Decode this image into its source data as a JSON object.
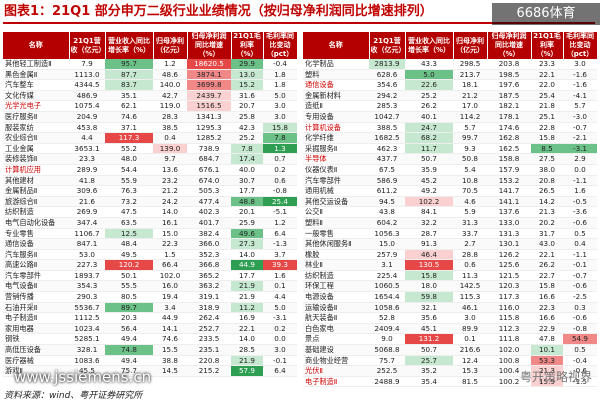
{
  "title": "图表1：21Q1 部分申万二级行业业绩情况（按归母净利润同比增速排列）",
  "badge": "6686体育",
  "source": "资料来源：wind、粤开证券研究所",
  "watermark_left": "www.jssiemens.cn",
  "watermark_right": "粤开策略视界",
  "headers": [
    "名称",
    "21Q1营收（亿元）",
    "营业收入同比增长率（%）",
    "归母净利（亿元）",
    "归母净利润同比增速（%）",
    "21Q1毛利率（%）",
    "毛利率同比变动（pct）"
  ],
  "left_rows": [
    [
      "其他轻工制造Ⅱ",
      "7.9",
      "95.7",
      "1.2",
      "18620.5",
      "29.9",
      "-0.4"
    ],
    [
      "黑色金属Ⅱ",
      "1113.0",
      "87.7",
      "48.6",
      "3874.1",
      "13.0",
      "1.8"
    ],
    [
      "汽车整车",
      "4344.5",
      "83.7",
      "140.0",
      "3699.8",
      "15.2",
      "1.8"
    ],
    [
      "文化传媒",
      "486.9",
      "35.1",
      "42.7",
      "2439.7",
      "31.6",
      "5.0"
    ],
    [
      "光学光电子",
      "1075.4",
      "62.1",
      "119.0",
      "1516.5",
      "20.7",
      "3.0"
    ],
    [
      "医疗服务Ⅱ",
      "204.9",
      "74.6",
      "28.3",
      "1341.3",
      "25.8",
      "3.0"
    ],
    [
      "服装家纺",
      "453.8",
      "37.1",
      "38.5",
      "1295.3",
      "42.3",
      "15.8"
    ],
    [
      "农业综合Ⅱ",
      "4.4",
      "117.3",
      "0.4",
      "1285.2",
      "25.2",
      "7.8"
    ],
    [
      "工业金属",
      "3653.1",
      "55.2",
      "139.0",
      "738.9",
      "7.8",
      "1.3"
    ],
    [
      "装修装饰Ⅱ",
      "23.3",
      "48.0",
      "9.7",
      "684.7",
      "17.4",
      "0.7"
    ],
    [
      "计算机应用",
      "289.9",
      "54.4",
      "13.6",
      "676.1",
      "40.0",
      "0.2"
    ],
    [
      "其他建材",
      "41.8",
      "55.9",
      "23.2",
      "674.0",
      "30.7",
      "0.6"
    ],
    [
      "金属制品Ⅱ",
      "309.6",
      "76.3",
      "21.2",
      "505.3",
      "17.7",
      "-0.8"
    ],
    [
      "旅游综合Ⅱ",
      "21.6",
      "73.2",
      "24.2",
      "477.4",
      "48.8",
      "25.4"
    ],
    [
      "纺织制造",
      "269.9",
      "47.5",
      "14.0",
      "402.3",
      "20.1",
      "-5.1"
    ],
    [
      "电气自动化设备",
      "347.4",
      "63.5",
      "16.1",
      "401.7",
      "25.9",
      "1.2"
    ],
    [
      "专业零售",
      "1106.7",
      "12.5",
      "15.0",
      "382.4",
      "49.6",
      "6.4"
    ],
    [
      "通信设备",
      "847.1",
      "48.4",
      "22.3",
      "366.0",
      "27.3",
      "-1.3"
    ],
    [
      "汽车服务Ⅱ",
      "53.0",
      "49.5",
      "1.5",
      "352.3",
      "14.0",
      "3.7"
    ],
    [
      "高速公路Ⅱ",
      "227.3",
      "120.2",
      "66.4",
      "366.8",
      "44.9",
      "39.3"
    ],
    [
      "汽车零部件",
      "1893.7",
      "50.1",
      "102.0",
      "365.2",
      "17.7",
      "1.6"
    ],
    [
      "电气设备Ⅱ",
      "354.3",
      "55.5",
      "16.0",
      "363.2",
      "21.9",
      "0.1"
    ],
    [
      "营销传播",
      "290.3",
      "80.5",
      "19.4",
      "319.1",
      "21.9",
      "4.4"
    ],
    [
      "石油开采Ⅱ",
      "5536.7",
      "89.7",
      "3.4",
      "318.9",
      "11.2",
      "5.0"
    ],
    [
      "电子制造Ⅱ",
      "1112.5",
      "20.3",
      "44.9",
      "262.4",
      "16.9",
      "-3.1"
    ],
    [
      "家用电器",
      "1023.4",
      "56.4",
      "14.1",
      "252.7",
      "22.1",
      "0.2"
    ],
    [
      "钢铁",
      "5285.1",
      "49.4",
      "74.6",
      "233.5",
      "14.0",
      "0.0"
    ],
    [
      "高低压设备",
      "328.1",
      "74.8",
      "15.5",
      "235.1",
      "28.5",
      "3.0"
    ],
    [
      "医疗器械",
      "1083.6",
      "49.4",
      "38.8",
      "220.8",
      "21.9",
      "-0.1"
    ],
    [
      "游戏Ⅱ",
      "45.5",
      "75.7",
      "14.5",
      "215.2",
      "57.9",
      "6.4"
    ]
  ],
  "right_rows": [
    [
      "化学制品",
      "2813.9",
      "43.3",
      "298.5",
      "203.8",
      "23.3",
      "3.0"
    ],
    [
      "塑料",
      "628.6",
      "5.0",
      "213.7",
      "198.5",
      "22.1",
      "-1.6"
    ],
    [
      "通信设备",
      "354.6",
      "22.6",
      "18.1",
      "197.6",
      "22.0",
      "-1.6"
    ],
    [
      "金属新材料",
      "294.2",
      "25.2",
      "21.2",
      "187.5",
      "25.4",
      "-4.1"
    ],
    [
      "造纸Ⅱ",
      "285.3",
      "26.2",
      "17.0",
      "182.1",
      "21.8",
      "5.7"
    ],
    [
      "专用设备",
      "1042.7",
      "40.1",
      "114.2",
      "178.1",
      "25.1",
      "-3.0"
    ],
    [
      "计算机设备",
      "388.5",
      "24.7",
      "5.7",
      "174.6",
      "22.8",
      "-0.7"
    ],
    [
      "化学纤维",
      "1682.5",
      "68.2",
      "99.7",
      "162.8",
      "15.8",
      "-2.1"
    ],
    [
      "采掘服务Ⅱ",
      "462.3",
      "11.7",
      "9.3",
      "162.5",
      "8.5",
      "-3.1"
    ],
    [
      "半导体",
      "437.7",
      "50.7",
      "50.8",
      "158.8",
      "27.5",
      "2.9"
    ],
    [
      "仪器仪表Ⅱ",
      "67.5",
      "35.9",
      "5.4",
      "157.9",
      "38.0",
      "0.0"
    ],
    [
      "汽车零部件",
      "586.9",
      "45.2",
      "10.8",
      "153.2",
      "20.8",
      "-1.1"
    ],
    [
      "通用机械",
      "611.2",
      "49.2",
      "70.5",
      "141.7",
      "26.5",
      "1.6"
    ],
    [
      "其他交运设备",
      "94.5",
      "102.2",
      "4.6",
      "141.1",
      "14.2",
      "-0.5"
    ],
    [
      "公交Ⅱ",
      "43.8",
      "84.1",
      "5.9",
      "137.6",
      "21.3",
      "-3.6"
    ],
    [
      "塑料Ⅱ",
      "604.2",
      "32.2",
      "31.3",
      "133.0",
      "20.2",
      "-0.6"
    ],
    [
      "一般零售",
      "1056.3",
      "28.7",
      "33.7",
      "131.3",
      "31.7",
      "0.5"
    ],
    [
      "其他休闲服务Ⅱ",
      "15.0",
      "91.3",
      "2.7",
      "130.1",
      "43.0",
      "0.4"
    ],
    [
      "橡胶",
      "257.9",
      "46.4",
      "28.8",
      "126.2",
      "22.1",
      "-1.1"
    ],
    [
      "林业Ⅱ",
      "3.1",
      "130.5",
      "0.6",
      "125.6",
      "26.2",
      "-0.1"
    ],
    [
      "纺织制造",
      "225.4",
      "15.8",
      "11.3",
      "121.5",
      "22.7",
      "-0.7"
    ],
    [
      "环保工程",
      "1060.5",
      "18.0",
      "142.5",
      "120.3",
      "15.8",
      "-0.6"
    ],
    [
      "电源设备",
      "1654.4",
      "59.8",
      "115.3",
      "117.3",
      "16.6",
      "-2.5"
    ],
    [
      "运输设备Ⅱ",
      "1058.6",
      "32.1",
      "46.1",
      "116.0",
      "22.3",
      "0.3"
    ],
    [
      "航天装备Ⅱ",
      "52.8",
      "35.6",
      "3.0",
      "115.8",
      "16.6",
      "-0.6"
    ],
    [
      "白色家电",
      "2409.4",
      "45.1",
      "89.9",
      "112.3",
      "22.9",
      "-0.8"
    ],
    [
      "景点",
      "9.0",
      "131.2",
      "0.1",
      "111.8",
      "47.8",
      "54.9"
    ],
    [
      "基础建设",
      "5068.8",
      "50.7",
      "216.6",
      "102.0",
      "10.1",
      "0.5"
    ],
    [
      "商业物业经营",
      "75.7",
      "25.7",
      "12.4",
      "100.8",
      "53.3",
      "-0.4"
    ],
    [
      "光伏Ⅱ",
      "252.5",
      "35.2",
      "15.3",
      "100.4",
      "21.3",
      "-0.6"
    ],
    [
      "电子制造Ⅱ",
      "2488.9",
      "35.4",
      "81.5",
      "100.2",
      "15.9",
      "-1.5"
    ]
  ],
  "left_red_rows": [
    4,
    10
  ],
  "right_red_rows": [
    2,
    6,
    9,
    29,
    30
  ],
  "left_shading": {
    "0": {
      "2": "g2",
      "4": "r3",
      "5": "g2"
    },
    "1": {
      "2": "g1",
      "4": "r2",
      "5": "g1"
    },
    "2": {
      "2": "g1",
      "4": "r2",
      "5": "g1"
    },
    "3": {
      "4": "r1"
    },
    "4": {
      "4": "r1"
    },
    "6": {
      "6": "g1"
    },
    "7": {
      "2": "r3",
      "6": "g2"
    },
    "8": {
      "3": "r1",
      "5": "g1",
      "6": "g3"
    },
    "9": {
      "5": "g1"
    },
    "13": {
      "5": "g2",
      "6": "g3"
    },
    "16": {
      "2": "g1",
      "5": "g2"
    },
    "17": {
      "5": "g1"
    },
    "19": {
      "2": "r3",
      "5": "g3",
      "6": "r3"
    },
    "21": {
      "5": "g1"
    },
    "23": {
      "2": "g2",
      "5": "g1"
    },
    "27": {
      "2": "g2"
    },
    "28": {
      "5": "g1"
    },
    "29": {
      "5": "g3"
    }
  },
  "right_shading": {
    "0": {
      "1": "g1"
    },
    "1": {
      "2": "g2"
    },
    "2": {
      "2": "g1"
    },
    "6": {
      "2": "g1"
    },
    "7": {
      "2": "g1"
    },
    "8": {
      "2": "g1",
      "5": "g2",
      "6": "g2"
    },
    "13": {
      "2": "r1"
    },
    "18": {
      "2": "r1"
    },
    "19": {
      "2": "r3"
    },
    "20": {
      "2": "g1"
    },
    "22": {
      "2": "g1"
    },
    "26": {
      "2": "r3",
      "6": "r2"
    },
    "27": {
      "5": "g1"
    },
    "28": {
      "2": "g1",
      "5": "r2"
    },
    "29": {
      "5": "r1"
    },
    "30": {
      "5": "r1"
    }
  }
}
